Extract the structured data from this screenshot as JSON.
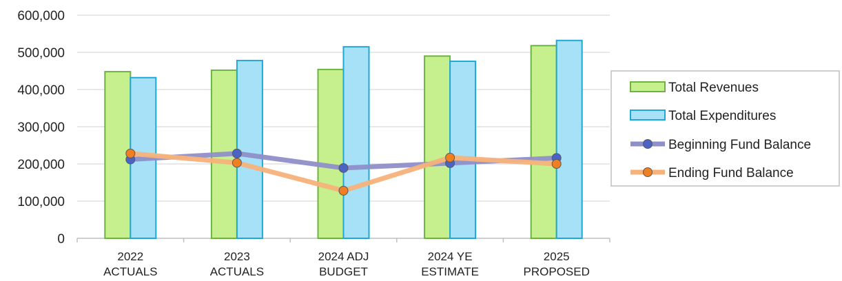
{
  "chart_data": {
    "type": "bar",
    "categories": [
      [
        "2022",
        "ACTUALS"
      ],
      [
        "2023",
        "ACTUALS"
      ],
      [
        "2024 ADJ",
        "BUDGET"
      ],
      [
        "2024 YE",
        "ESTIMATE"
      ],
      [
        "2025",
        "PROPOSED"
      ]
    ],
    "y_ticks": [
      "0",
      "100,000",
      "200,000",
      "300,000",
      "400,000",
      "500,000",
      "600,000"
    ],
    "ylim": [
      0,
      600000
    ],
    "grid": true,
    "legend_position": "right",
    "series": [
      {
        "name": "Total Revenues",
        "kind": "bar",
        "values": [
          448000,
          452000,
          454000,
          490000,
          518000
        ]
      },
      {
        "name": "Total Expenditures",
        "kind": "bar",
        "values": [
          432000,
          478000,
          515000,
          476000,
          532000
        ]
      },
      {
        "name": "Beginning Fund Balance",
        "kind": "line",
        "values": [
          212000,
          228000,
          189000,
          202000,
          216000
        ]
      },
      {
        "name": "Ending Fund Balance",
        "kind": "line",
        "values": [
          228000,
          203000,
          128000,
          217000,
          200000
        ]
      }
    ],
    "colors": {
      "revenues_fill": "#c6ef8e",
      "revenues_stroke": "#6cb33f",
      "expenditures_fill": "#a6e1f7",
      "expenditures_stroke": "#1fa8d6",
      "beginning_line": "#8f8fc9",
      "beginning_marker": "#4a63c4",
      "ending_line": "#f7b27a",
      "ending_marker": "#f07f22",
      "grid": "#d9d9d9",
      "axis": "#bfbfbf"
    }
  }
}
